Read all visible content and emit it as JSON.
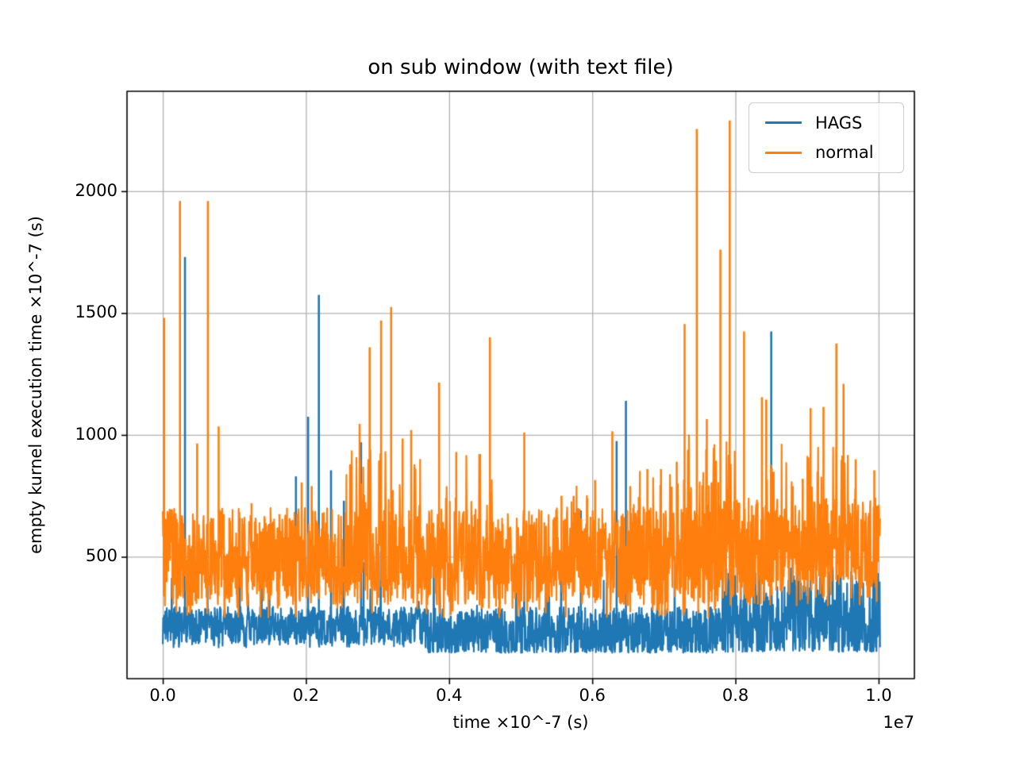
{
  "figure": {
    "background": "#ffffff",
    "text_color": "#000000"
  },
  "chart_data": {
    "type": "line",
    "title": "on sub window (with text file)",
    "xlabel": "time ×10^-7 (s)",
    "ylabel": "empty kurnel execution time ×10^-7 (s)",
    "x_offset_text": "1e7",
    "xlim": [
      -500000,
      10500000
    ],
    "ylim": [
      0,
      2410
    ],
    "grid": true,
    "grid_color": "#b0b0b0",
    "spine_color": "#000000",
    "xticks": [
      {
        "value": 0,
        "label": "0.0"
      },
      {
        "value": 2000000,
        "label": "0.2"
      },
      {
        "value": 4000000,
        "label": "0.4"
      },
      {
        "value": 6000000,
        "label": "0.6"
      },
      {
        "value": 8000000,
        "label": "0.8"
      },
      {
        "value": 10000000,
        "label": "1.0"
      }
    ],
    "yticks": [
      {
        "value": 500,
        "label": "500"
      },
      {
        "value": 1000,
        "label": "1000"
      },
      {
        "value": 1500,
        "label": "1500"
      },
      {
        "value": 2000,
        "label": "2000"
      }
    ],
    "legend": {
      "location": "upper right",
      "entries": [
        {
          "label": "HAGS",
          "color": "#1f77b4"
        },
        {
          "label": "normal",
          "color": "#ff7f0e"
        }
      ]
    },
    "series": [
      {
        "name": "HAGS",
        "color": "#1f77b4",
        "x_range": [
          0,
          10020000
        ],
        "band_segments": [
          {
            "x0": 0,
            "x1": 3700000,
            "min": 140,
            "max": 295,
            "tail_min": 128,
            "tail_p": 0.03,
            "up_p": 0.012,
            "up_max": 520
          },
          {
            "x0": 3700000,
            "x1": 7800000,
            "min": 115,
            "max": 295,
            "tail_min": 106,
            "tail_p": 0.12,
            "up_p": 0.012,
            "up_max": 520
          },
          {
            "x0": 7800000,
            "x1": 10020000,
            "min": 122,
            "max": 305,
            "tail_min": 110,
            "tail_p": 0.12,
            "up_p": 0.3,
            "up_max": 460
          }
        ],
        "spikes": [
          [
            310000,
            1730
          ],
          [
            1075000,
            660
          ],
          [
            1490000,
            635
          ],
          [
            1860000,
            830
          ],
          [
            2030000,
            1075
          ],
          [
            2180000,
            1575
          ],
          [
            2350000,
            855
          ],
          [
            2530000,
            730
          ],
          [
            2770000,
            970
          ],
          [
            5840000,
            690
          ],
          [
            6340000,
            975
          ],
          [
            6470000,
            1140
          ],
          [
            8500000,
            1425
          ]
        ]
      },
      {
        "name": "normal",
        "color": "#ff7f0e",
        "x_range": [
          0,
          10020000
        ],
        "band_segments": [
          {
            "x0": 0,
            "x1": 7760000,
            "min": 305,
            "max": 560,
            "tail_min": 250,
            "tail_p": 0.05,
            "up_p": 0.3,
            "up_max": 700
          },
          {
            "x0": 7760000,
            "x1": 10020000,
            "min": 355,
            "max": 600,
            "tail_min": 300,
            "tail_p": 0.08,
            "up_p": 0.32,
            "up_max": 740
          }
        ],
        "hot_regions": [
          [
            0,
            200000,
            0.5,
            700
          ],
          [
            2550000,
            3600000,
            0.12,
            950
          ],
          [
            3950000,
            4700000,
            0.1,
            930
          ],
          [
            5450000,
            6150000,
            0.06,
            810
          ],
          [
            6500000,
            7300000,
            0.08,
            880
          ],
          [
            7250000,
            8000000,
            0.12,
            1000
          ],
          [
            8200000,
            8800000,
            0.08,
            1000
          ],
          [
            9000000,
            9700000,
            0.1,
            950
          ]
        ],
        "spikes": [
          [
            20000,
            1480
          ],
          [
            240000,
            1960
          ],
          [
            480000,
            965
          ],
          [
            630000,
            1960
          ],
          [
            780000,
            1035
          ],
          [
            850000,
            675
          ],
          [
            930000,
            660
          ],
          [
            1240000,
            720
          ],
          [
            1630000,
            675
          ],
          [
            1940000,
            805
          ],
          [
            2080000,
            790
          ],
          [
            2750000,
            1045
          ],
          [
            2890000,
            1360
          ],
          [
            3050000,
            1470
          ],
          [
            3190000,
            1525
          ],
          [
            3350000,
            985
          ],
          [
            3470000,
            1020
          ],
          [
            3860000,
            1215
          ],
          [
            4100000,
            930
          ],
          [
            4570000,
            1400
          ],
          [
            5050000,
            1010
          ],
          [
            5570000,
            750
          ],
          [
            5740000,
            750
          ],
          [
            5930000,
            740
          ],
          [
            6040000,
            815
          ],
          [
            6280000,
            1015
          ],
          [
            6530000,
            790
          ],
          [
            6650000,
            745
          ],
          [
            6770000,
            860
          ],
          [
            6960000,
            860
          ],
          [
            7180000,
            890
          ],
          [
            7290000,
            1455
          ],
          [
            7460000,
            2255
          ],
          [
            7600000,
            1065
          ],
          [
            7790000,
            1760
          ],
          [
            7920000,
            2290
          ],
          [
            8120000,
            1425
          ],
          [
            8370000,
            1155
          ],
          [
            8430000,
            1145
          ],
          [
            8800000,
            790
          ],
          [
            8940000,
            820
          ],
          [
            9050000,
            1110
          ],
          [
            9230000,
            1115
          ],
          [
            9410000,
            1375
          ],
          [
            9510000,
            1210
          ],
          [
            9680000,
            900
          ],
          [
            9940000,
            855
          ]
        ]
      }
    ],
    "synthesis": {
      "seed": 7,
      "step": 5000
    }
  }
}
